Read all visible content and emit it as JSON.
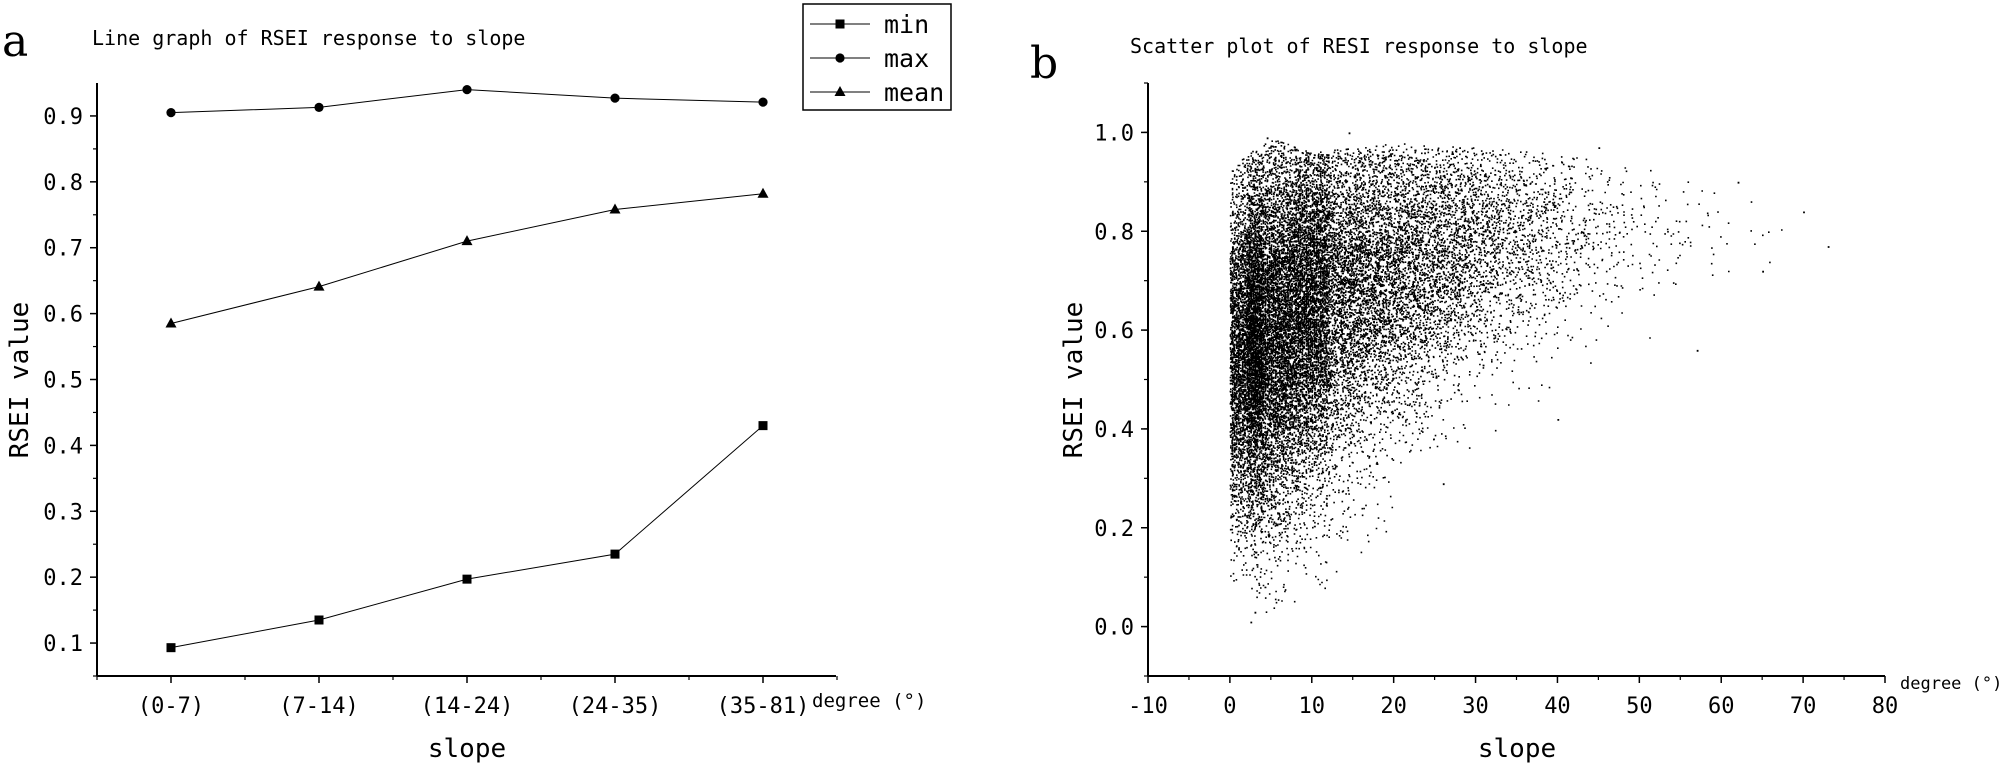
{
  "chart_data": [
    {
      "panel_label": "a",
      "type": "line",
      "title": "Line graph of RSEI response to slope",
      "xlabel": "slope",
      "x_unit": "degree (°)",
      "ylabel": "RSEI value",
      "categories": [
        "(0-7)",
        "(7-14)",
        "(14-24)",
        "(24-35)",
        "(35-81)"
      ],
      "ylim": [
        0.05,
        0.95
      ],
      "yticks": [
        "0.1",
        "0.2",
        "0.3",
        "0.4",
        "0.5",
        "0.6",
        "0.7",
        "0.8",
        "0.9"
      ],
      "legend_position": "top-right",
      "grid": false,
      "series": [
        {
          "name": "min",
          "marker": "square",
          "values": [
            0.093,
            0.135,
            0.197,
            0.235,
            0.43
          ]
        },
        {
          "name": "max",
          "marker": "circle",
          "values": [
            0.905,
            0.913,
            0.94,
            0.927,
            0.921
          ]
        },
        {
          "name": "mean",
          "marker": "triangle",
          "values": [
            0.585,
            0.641,
            0.71,
            0.758,
            0.782
          ]
        }
      ]
    },
    {
      "panel_label": "b",
      "type": "scatter",
      "title": "Scatter plot of RESI response to slope",
      "xlabel": "slope",
      "x_unit": "degree (°)",
      "ylabel": "RSEI value",
      "xlim": [
        -10,
        80
      ],
      "ylim": [
        -0.1,
        1.1
      ],
      "xticks": [
        "-10",
        "0",
        "10",
        "20",
        "30",
        "40",
        "50",
        "60",
        "70",
        "80"
      ],
      "yticks": [
        "0.0",
        "0.2",
        "0.4",
        "0.6",
        "0.8",
        "1.0"
      ],
      "grid": false,
      "point_color": "#000000",
      "density_profile": [
        {
          "slope": 0,
          "rsei_min": 0.1,
          "rsei_max": 0.93,
          "rsei_center": 0.55
        },
        {
          "slope": 5,
          "rsei_min": 0.02,
          "rsei_max": 0.99,
          "rsei_center": 0.6
        },
        {
          "slope": 10,
          "rsei_min": 0.05,
          "rsei_max": 0.96,
          "rsei_center": 0.66
        },
        {
          "slope": 20,
          "rsei_min": 0.15,
          "rsei_max": 0.98,
          "rsei_center": 0.73
        },
        {
          "slope": 30,
          "rsei_min": 0.35,
          "rsei_max": 0.97,
          "rsei_center": 0.78
        },
        {
          "slope": 40,
          "rsei_min": 0.42,
          "rsei_max": 0.96,
          "rsei_center": 0.8
        },
        {
          "slope": 50,
          "rsei_min": 0.55,
          "rsei_max": 0.93,
          "rsei_center": 0.8
        },
        {
          "slope": 60,
          "rsei_min": 0.68,
          "rsei_max": 0.93,
          "rsei_center": 0.8
        },
        {
          "slope": 73,
          "rsei_min": 0.76,
          "rsei_max": 0.8,
          "rsei_center": 0.77
        }
      ],
      "example_points": [
        [
          1.5,
          0.55
        ],
        [
          2.5,
          0.01
        ],
        [
          3,
          0.03
        ],
        [
          4.5,
          0.99
        ],
        [
          14.5,
          1.0
        ],
        [
          26,
          0.29
        ],
        [
          28,
          0.97
        ],
        [
          40,
          0.42
        ],
        [
          45,
          0.97
        ],
        [
          57,
          0.56
        ],
        [
          62,
          0.9
        ],
        [
          65,
          0.72
        ],
        [
          70,
          0.84
        ],
        [
          73,
          0.77
        ]
      ]
    }
  ]
}
